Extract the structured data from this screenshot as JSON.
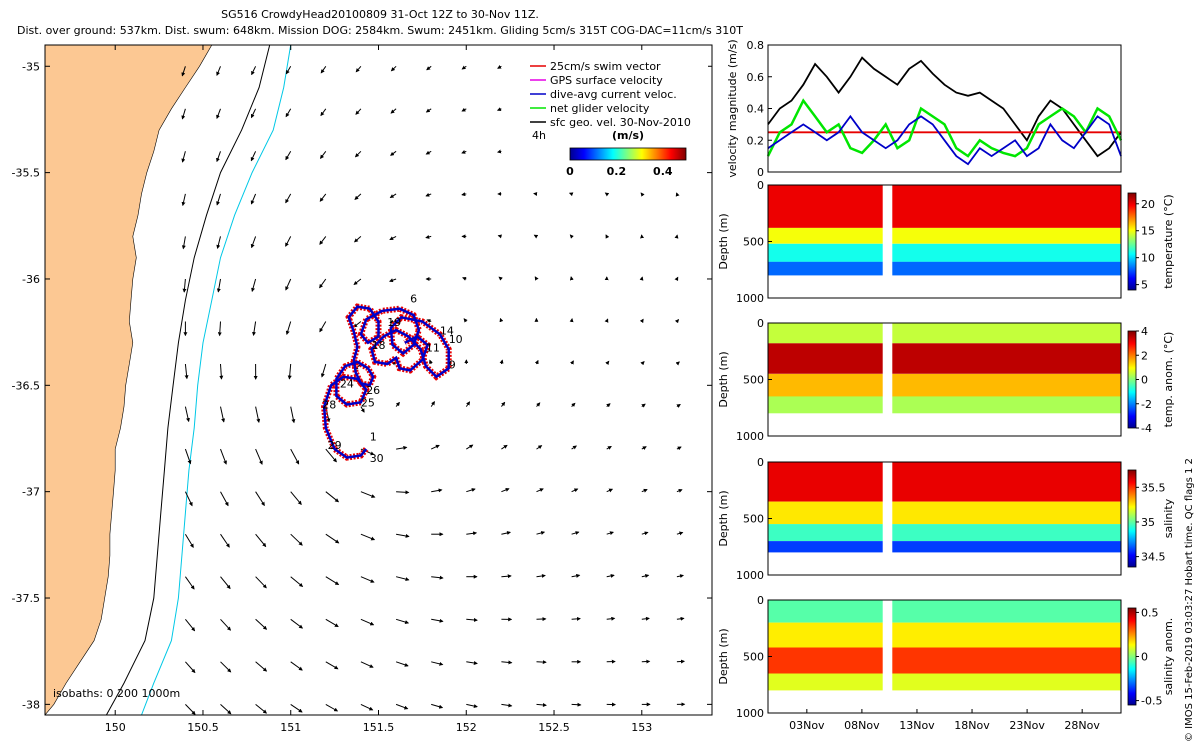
{
  "title": {
    "line1": "SG516 CrowdyHead20100809 31-Oct 12Z to 30-Nov 11Z.",
    "line2": "Dist. over ground: 537km. Dist. swum: 648km. Mission DOG: 2584km. Swum: 2451km. Gliding 5cm/s 315T COG-DAC=11cm/s 310T"
  },
  "credit": "© IMOS 15-Feb-2019 03:03:27 Hobart time. QC flags 1  2",
  "colors": {
    "land": "#fcc893",
    "coast_isobath": "#000000",
    "isobath_200": "#000000",
    "isobath_1000": "#00c8e6",
    "track_red": "#e60000",
    "dac_blue": "#0000c8",
    "glider_green": "#00e600",
    "gps_magenta": "#e600e6"
  },
  "chart_data": [
    {
      "type": "map",
      "name": "glider track map",
      "xlim": [
        149.6,
        153.4
      ],
      "ylim": [
        -38.05,
        -34.9
      ],
      "xticks": [
        150,
        150.5,
        151,
        151.5,
        152,
        152.5,
        153
      ],
      "xtick_labels": [
        "150",
        "150.5",
        "151",
        "151.5",
        "152",
        "152.5",
        "153"
      ],
      "yticks": [
        -35,
        -35.5,
        -36,
        -36.5,
        -37,
        -37.5,
        -38
      ],
      "ytick_labels": [
        "-35",
        "-35.5",
        "-36",
        "-36.5",
        "-37",
        "-37.5",
        "-38"
      ],
      "legend": {
        "placement": "top-right",
        "items": [
          {
            "label": "25cm/s swim vector",
            "color": "#e60000"
          },
          {
            "label": "GPS surface velocity",
            "color": "#e600e6"
          },
          {
            "label": "dive-avg current veloc.",
            "color": "#0000c8"
          },
          {
            "label": "net glider velocity",
            "color": "#00e600"
          },
          {
            "label": "sfc geo. vel. 30-Nov-2010",
            "color": "#000000"
          }
        ],
        "corner_label": "4h",
        "colorbar_title": "(m/s)",
        "colorbar_ticks": [
          "0",
          "0.2",
          "0.4"
        ],
        "colorbar_range": [
          0,
          0.5
        ]
      },
      "isobaths_label": "isobaths: 0   200  1000m",
      "coast": [
        [
          -34.9,
          150.55
        ],
        [
          -35.0,
          150.48
        ],
        [
          -35.1,
          150.4
        ],
        [
          -35.2,
          150.32
        ],
        [
          -35.3,
          150.25
        ],
        [
          -35.4,
          150.22
        ],
        [
          -35.5,
          150.18
        ],
        [
          -35.6,
          150.15
        ],
        [
          -35.7,
          150.13
        ],
        [
          -35.8,
          150.1
        ],
        [
          -35.9,
          150.12
        ],
        [
          -36.0,
          150.1
        ],
        [
          -36.1,
          150.09
        ],
        [
          -36.2,
          150.08
        ],
        [
          -36.3,
          150.1
        ],
        [
          -36.4,
          150.08
        ],
        [
          -36.5,
          150.06
        ],
        [
          -36.6,
          150.05
        ],
        [
          -36.7,
          150.03
        ],
        [
          -36.8,
          150.0
        ],
        [
          -36.9,
          150.0
        ],
        [
          -37.0,
          149.99
        ],
        [
          -37.1,
          149.98
        ],
        [
          -37.2,
          149.97
        ],
        [
          -37.3,
          149.97
        ],
        [
          -37.4,
          149.96
        ],
        [
          -37.5,
          149.94
        ],
        [
          -37.6,
          149.92
        ],
        [
          -37.7,
          149.88
        ],
        [
          -37.8,
          149.8
        ],
        [
          -37.9,
          149.72
        ],
        [
          -38.0,
          149.65
        ],
        [
          -38.05,
          149.6
        ]
      ],
      "isobath_200": [
        [
          -34.9,
          150.88
        ],
        [
          -35.1,
          150.82
        ],
        [
          -35.3,
          150.72
        ],
        [
          -35.5,
          150.6
        ],
        [
          -35.7,
          150.52
        ],
        [
          -35.9,
          150.45
        ],
        [
          -36.1,
          150.4
        ],
        [
          -36.3,
          150.36
        ],
        [
          -36.5,
          150.33
        ],
        [
          -36.7,
          150.3
        ],
        [
          -36.9,
          150.28
        ],
        [
          -37.1,
          150.26
        ],
        [
          -37.3,
          150.24
        ],
        [
          -37.5,
          150.22
        ],
        [
          -37.7,
          150.17
        ],
        [
          -37.9,
          150.05
        ],
        [
          -38.05,
          149.95
        ]
      ],
      "isobath_1000": [
        [
          -34.9,
          151.0
        ],
        [
          -35.1,
          150.96
        ],
        [
          -35.3,
          150.9
        ],
        [
          -35.5,
          150.78
        ],
        [
          -35.7,
          150.68
        ],
        [
          -35.9,
          150.6
        ],
        [
          -36.1,
          150.55
        ],
        [
          -36.3,
          150.5
        ],
        [
          -36.5,
          150.47
        ],
        [
          -36.7,
          150.45
        ],
        [
          -36.9,
          150.42
        ],
        [
          -37.1,
          150.4
        ],
        [
          -37.3,
          150.38
        ],
        [
          -37.5,
          150.36
        ],
        [
          -37.7,
          150.32
        ],
        [
          -37.9,
          150.22
        ],
        [
          -38.05,
          150.15
        ]
      ],
      "track": [
        [
          151.43,
          -36.8
        ],
        [
          151.4,
          -36.83
        ],
        [
          151.32,
          -36.84
        ],
        [
          151.25,
          -36.8
        ],
        [
          151.2,
          -36.7
        ],
        [
          151.19,
          -36.6
        ],
        [
          151.23,
          -36.5
        ],
        [
          151.3,
          -36.46
        ],
        [
          151.38,
          -36.47
        ],
        [
          151.43,
          -36.52
        ],
        [
          151.4,
          -36.58
        ],
        [
          151.32,
          -36.59
        ],
        [
          151.26,
          -36.55
        ],
        [
          151.26,
          -36.47
        ],
        [
          151.31,
          -36.41
        ],
        [
          151.38,
          -36.39
        ],
        [
          151.44,
          -36.42
        ],
        [
          151.47,
          -36.46
        ],
        [
          151.45,
          -36.5
        ],
        [
          151.4,
          -36.49
        ],
        [
          151.37,
          -36.44
        ],
        [
          151.36,
          -36.38
        ],
        [
          151.38,
          -36.32
        ],
        [
          151.36,
          -36.25
        ],
        [
          151.33,
          -36.18
        ],
        [
          151.38,
          -36.13
        ],
        [
          151.45,
          -36.14
        ],
        [
          151.5,
          -36.2
        ],
        [
          151.5,
          -36.27
        ],
        [
          151.44,
          -36.3
        ],
        [
          151.4,
          -36.26
        ],
        [
          151.43,
          -36.19
        ],
        [
          151.52,
          -36.15
        ],
        [
          151.62,
          -36.14
        ],
        [
          151.7,
          -36.17
        ],
        [
          151.73,
          -36.24
        ],
        [
          151.7,
          -36.31
        ],
        [
          151.64,
          -36.35
        ],
        [
          151.58,
          -36.31
        ],
        [
          151.57,
          -36.23
        ],
        [
          151.63,
          -36.18
        ],
        [
          151.75,
          -36.2
        ],
        [
          151.85,
          -36.26
        ],
        [
          151.9,
          -36.33
        ],
        [
          151.9,
          -36.42
        ],
        [
          151.83,
          -36.46
        ],
        [
          151.77,
          -36.41
        ],
        [
          151.74,
          -36.33
        ],
        [
          151.67,
          -36.27
        ],
        [
          151.6,
          -36.24
        ],
        [
          151.53,
          -36.27
        ],
        [
          151.46,
          -36.33
        ],
        [
          151.48,
          -36.39
        ],
        [
          151.55,
          -36.4
        ],
        [
          151.6,
          -36.37
        ],
        [
          151.62,
          -36.42
        ],
        [
          151.68,
          -36.43
        ],
        [
          151.75,
          -36.38
        ],
        [
          151.78,
          -36.31
        ],
        [
          151.72,
          -36.27
        ],
        [
          151.65,
          -36.3
        ]
      ],
      "day_labels": [
        {
          "label": "1",
          "lon": 151.45,
          "lat": -36.76
        },
        {
          "label": "6",
          "lon": 151.68,
          "lat": -36.11
        },
        {
          "label": "9",
          "lon": 151.9,
          "lat": -36.42
        },
        {
          "label": "10",
          "lon": 151.9,
          "lat": -36.3
        },
        {
          "label": "11",
          "lon": 151.77,
          "lat": -36.34
        },
        {
          "label": "14",
          "lon": 151.85,
          "lat": -36.26
        },
        {
          "label": "18",
          "lon": 151.46,
          "lat": -36.33
        },
        {
          "label": "19",
          "lon": 151.55,
          "lat": -36.22
        },
        {
          "label": "24",
          "lon": 151.28,
          "lat": -36.51
        },
        {
          "label": "25",
          "lon": 151.4,
          "lat": -36.6
        },
        {
          "label": "26",
          "lon": 151.43,
          "lat": -36.54
        },
        {
          "label": "28",
          "lon": 151.18,
          "lat": -36.61
        },
        {
          "label": "29",
          "lon": 151.21,
          "lat": -36.8
        },
        {
          "label": "30",
          "lon": 151.45,
          "lat": -36.86
        }
      ],
      "geostrophic_field": {
        "lon": [
          150.4,
          150.6,
          150.8,
          151.0,
          151.2,
          151.4,
          151.6,
          151.8,
          152.0,
          152.2,
          152.4,
          152.6,
          152.8,
          153.0,
          153.2
        ],
        "lat": [
          -35.0,
          -35.2,
          -35.4,
          -35.6,
          -35.8,
          -36.0,
          -36.2,
          -36.4,
          -36.6,
          -36.8,
          -37.0,
          -37.2,
          -37.4,
          -37.6,
          -37.8,
          -38.0
        ],
        "eddy_center": [
          151.4,
          -36.6
        ]
      }
    },
    {
      "type": "line",
      "name": "velocity magnitude",
      "ylabel": "velocity magnitude (m/s)",
      "ylim": [
        0,
        0.8
      ],
      "yticks": [
        "0",
        "0.2",
        "0.4",
        "0.6",
        "0.8"
      ],
      "xlim_days": [
        0,
        30
      ],
      "series": [
        {
          "color": "#000000",
          "x": [
            0,
            1,
            2,
            3,
            4,
            5,
            6,
            7,
            8,
            9,
            10,
            11,
            12,
            13,
            14,
            15,
            16,
            17,
            18,
            19,
            20,
            21,
            22,
            23,
            24,
            25,
            26,
            27,
            28,
            29,
            30
          ],
          "values": [
            0.3,
            0.4,
            0.45,
            0.55,
            0.68,
            0.6,
            0.5,
            0.6,
            0.72,
            0.65,
            0.6,
            0.55,
            0.65,
            0.7,
            0.62,
            0.55,
            0.5,
            0.48,
            0.5,
            0.45,
            0.4,
            0.3,
            0.2,
            0.35,
            0.45,
            0.4,
            0.3,
            0.2,
            0.1,
            0.15,
            0.25
          ]
        },
        {
          "color": "#e60000",
          "x": [
            0,
            30
          ],
          "values": [
            0.25,
            0.25
          ]
        },
        {
          "color": "#00e600",
          "x": [
            0,
            1,
            2,
            3,
            4,
            5,
            6,
            7,
            8,
            9,
            10,
            11,
            12,
            13,
            14,
            15,
            16,
            17,
            18,
            19,
            20,
            21,
            22,
            23,
            24,
            25,
            26,
            27,
            28,
            29,
            30
          ],
          "values": [
            0.1,
            0.25,
            0.3,
            0.45,
            0.35,
            0.25,
            0.3,
            0.15,
            0.12,
            0.2,
            0.3,
            0.15,
            0.2,
            0.4,
            0.35,
            0.3,
            0.15,
            0.1,
            0.2,
            0.15,
            0.12,
            0.1,
            0.15,
            0.3,
            0.35,
            0.4,
            0.35,
            0.25,
            0.4,
            0.35,
            0.2
          ]
        },
        {
          "color": "#0000c8",
          "x": [
            0,
            1,
            2,
            3,
            4,
            5,
            6,
            7,
            8,
            9,
            10,
            11,
            12,
            13,
            14,
            15,
            16,
            17,
            18,
            19,
            20,
            21,
            22,
            23,
            24,
            25,
            26,
            27,
            28,
            29,
            30
          ],
          "values": [
            0.15,
            0.2,
            0.25,
            0.3,
            0.25,
            0.2,
            0.25,
            0.35,
            0.25,
            0.2,
            0.15,
            0.2,
            0.3,
            0.35,
            0.3,
            0.2,
            0.1,
            0.05,
            0.15,
            0.1,
            0.15,
            0.2,
            0.1,
            0.15,
            0.3,
            0.2,
            0.15,
            0.25,
            0.35,
            0.3,
            0.1
          ]
        }
      ]
    },
    {
      "type": "heatmap",
      "name": "temperature section",
      "ylabel": "Depth (m)",
      "ylim": [
        0,
        1000
      ],
      "yticks": [
        "0",
        "500",
        "1000"
      ],
      "colorbar_label": "temperature (°C)",
      "colorbar_ticks": [
        "5",
        "10",
        "15",
        "20"
      ],
      "colorbar_range": [
        4,
        22
      ],
      "layers": [
        {
          "top": 0,
          "bottom": 380,
          "value": 20
        },
        {
          "top": 380,
          "bottom": 520,
          "value": 15
        },
        {
          "top": 520,
          "bottom": 680,
          "value": 11
        },
        {
          "top": 680,
          "bottom": 800,
          "value": 8
        }
      ]
    },
    {
      "type": "heatmap",
      "name": "temperature anomaly section",
      "ylabel": "Depth (m)",
      "ylim": [
        0,
        1000
      ],
      "yticks": [
        "0",
        "500",
        "1000"
      ],
      "colorbar_label": "temp. anom. (°C)",
      "colorbar_ticks": [
        "-4",
        "-2",
        "0",
        "2",
        "4"
      ],
      "colorbar_range": [
        -4,
        4
      ],
      "layers": [
        {
          "top": 0,
          "bottom": 180,
          "value": 0.5
        },
        {
          "top": 180,
          "bottom": 450,
          "value": 3.5
        },
        {
          "top": 450,
          "bottom": 650,
          "value": 1.5
        },
        {
          "top": 650,
          "bottom": 800,
          "value": 0.3
        }
      ]
    },
    {
      "type": "heatmap",
      "name": "salinity section",
      "ylabel": "Depth (m)",
      "ylim": [
        0,
        1000
      ],
      "yticks": [
        "0",
        "500",
        "1000"
      ],
      "colorbar_label": "salinity",
      "colorbar_ticks": [
        "34.5",
        "35",
        "35.5"
      ],
      "colorbar_range": [
        34.35,
        35.75
      ],
      "layers": [
        {
          "top": 0,
          "bottom": 350,
          "value": 35.6
        },
        {
          "top": 350,
          "bottom": 550,
          "value": 35.25
        },
        {
          "top": 550,
          "bottom": 700,
          "value": 34.95
        },
        {
          "top": 700,
          "bottom": 800,
          "value": 34.6
        }
      ]
    },
    {
      "type": "heatmap",
      "name": "salinity anomaly section",
      "ylabel": "Depth (m)",
      "ylim": [
        0,
        1000
      ],
      "yticks": [
        "0",
        "500",
        "1000"
      ],
      "colorbar_label": "salinity anom.",
      "colorbar_ticks": [
        "-0.5",
        "0",
        "0.5"
      ],
      "colorbar_range": [
        -0.55,
        0.55
      ],
      "layers": [
        {
          "top": 0,
          "bottom": 200,
          "value": -0.05
        },
        {
          "top": 200,
          "bottom": 420,
          "value": 0.15
        },
        {
          "top": 420,
          "bottom": 650,
          "value": 0.35
        },
        {
          "top": 650,
          "bottom": 800,
          "value": 0.1
        }
      ],
      "xticks": [
        "03Nov",
        "08Nov",
        "13Nov",
        "18Nov",
        "23Nov",
        "28Nov"
      ]
    }
  ]
}
